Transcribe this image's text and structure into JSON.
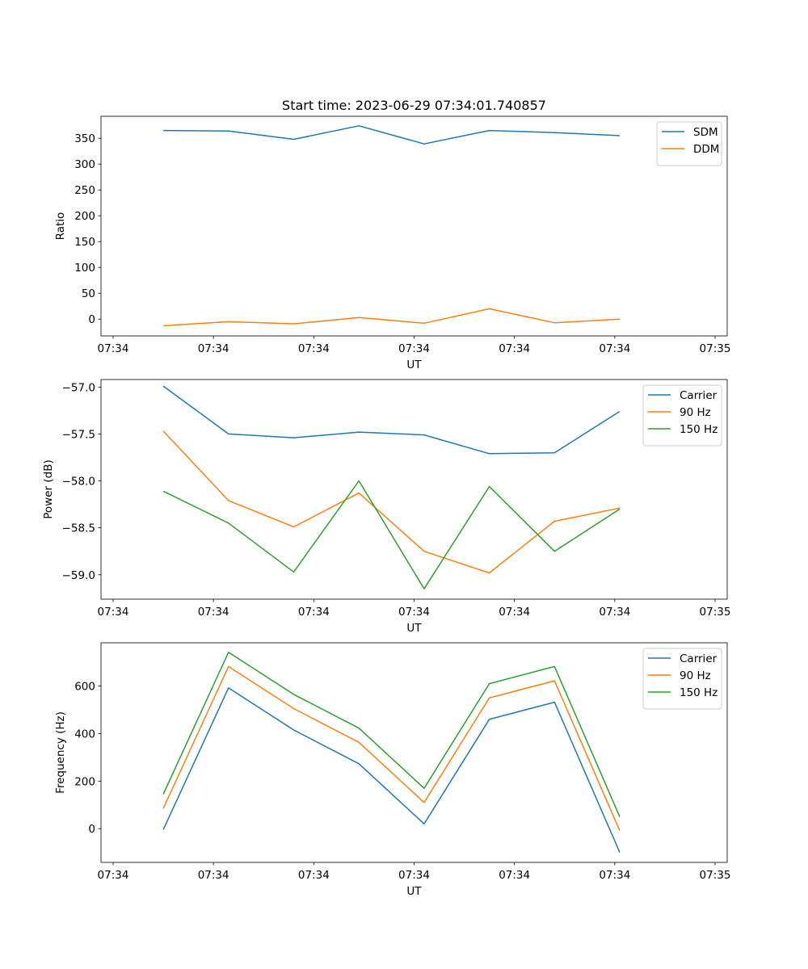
{
  "figure_title": "Start time: 2023-06-29 07:34:01.740857",
  "chart_data": [
    {
      "type": "line",
      "title": "Start time: 2023-06-29 07:34:01.740857",
      "xlabel": "UT",
      "ylabel": "Ratio",
      "xlim": [
        0,
        6.0
      ],
      "ylim": [
        -32.5,
        392.5
      ],
      "x_ticks": [
        {
          "v": 0,
          "label": "07:34"
        },
        {
          "v": 1,
          "label": "07:34"
        },
        {
          "v": 2,
          "label": "07:34"
        },
        {
          "v": 3,
          "label": "07:34"
        },
        {
          "v": 4,
          "label": "07:34"
        },
        {
          "v": 5,
          "label": "07:34"
        },
        {
          "v": 6,
          "label": "07:35"
        }
      ],
      "y_ticks": [
        0,
        50,
        100,
        150,
        200,
        250,
        300,
        350
      ],
      "x": [
        0.5,
        1.15,
        1.8,
        2.45,
        3.1,
        3.75,
        4.4,
        5.05
      ],
      "series": [
        {
          "name": "SDM",
          "color": "#1f77b4",
          "values": [
            365,
            364,
            348,
            374,
            339,
            365,
            361,
            355
          ]
        },
        {
          "name": "DDM",
          "color": "#ff7f0e",
          "values": [
            -13,
            -5,
            -9,
            3,
            -8,
            20,
            -7,
            0
          ]
        }
      ],
      "legend": "top-right"
    },
    {
      "type": "line",
      "title": "",
      "xlabel": "UT",
      "ylabel": "Power (dB)",
      "xlim": [
        0,
        6.0
      ],
      "ylim": [
        -59.26,
        -56.92
      ],
      "x_ticks": [
        {
          "v": 0,
          "label": "07:34"
        },
        {
          "v": 1,
          "label": "07:34"
        },
        {
          "v": 2,
          "label": "07:34"
        },
        {
          "v": 3,
          "label": "07:34"
        },
        {
          "v": 4,
          "label": "07:34"
        },
        {
          "v": 5,
          "label": "07:34"
        },
        {
          "v": 6,
          "label": "07:35"
        }
      ],
      "y_ticks": [
        -59.0,
        -58.5,
        -58.0,
        -57.5,
        -57.0
      ],
      "y_tick_labels": [
        "−59.0",
        "−58.5",
        "−58.0",
        "−57.5",
        "−57.0"
      ],
      "x": [
        0.5,
        1.15,
        1.8,
        2.45,
        3.1,
        3.75,
        4.4,
        5.05
      ],
      "series": [
        {
          "name": "Carrier",
          "color": "#1f77b4",
          "values": [
            -56.99,
            -57.5,
            -57.54,
            -57.48,
            -57.51,
            -57.71,
            -57.7,
            -57.26
          ]
        },
        {
          "name": "90 Hz",
          "color": "#ff7f0e",
          "values": [
            -57.47,
            -58.21,
            -58.49,
            -58.13,
            -58.75,
            -58.98,
            -58.43,
            -58.29
          ]
        },
        {
          "name": "150 Hz",
          "color": "#2ca02c",
          "values": [
            -58.11,
            -58.45,
            -58.97,
            -58.0,
            -59.15,
            -58.06,
            -58.75,
            -58.3
          ]
        }
      ],
      "legend": "top-right"
    },
    {
      "type": "line",
      "title": "",
      "xlabel": "UT",
      "ylabel": "Frequency (Hz)",
      "xlim": [
        0,
        6.0
      ],
      "ylim": [
        -142,
        782
      ],
      "x_ticks": [
        {
          "v": 0,
          "label": "07:34"
        },
        {
          "v": 1,
          "label": "07:34"
        },
        {
          "v": 2,
          "label": "07:34"
        },
        {
          "v": 3,
          "label": "07:34"
        },
        {
          "v": 4,
          "label": "07:34"
        },
        {
          "v": 5,
          "label": "07:34"
        },
        {
          "v": 6,
          "label": "07:35"
        }
      ],
      "y_ticks": [
        0,
        200,
        400,
        600
      ],
      "x": [
        0.5,
        1.15,
        1.8,
        2.45,
        3.1,
        3.75,
        4.4,
        5.05
      ],
      "series": [
        {
          "name": "Carrier",
          "color": "#1f77b4",
          "values": [
            -4,
            592,
            415,
            273,
            20,
            460,
            532,
            -100
          ]
        },
        {
          "name": "90 Hz",
          "color": "#ff7f0e",
          "values": [
            85,
            682,
            505,
            363,
            110,
            550,
            622,
            -8
          ]
        },
        {
          "name": "150 Hz",
          "color": "#2ca02c",
          "values": [
            145,
            742,
            565,
            423,
            170,
            610,
            682,
            50
          ]
        }
      ],
      "legend": "top-right"
    }
  ]
}
